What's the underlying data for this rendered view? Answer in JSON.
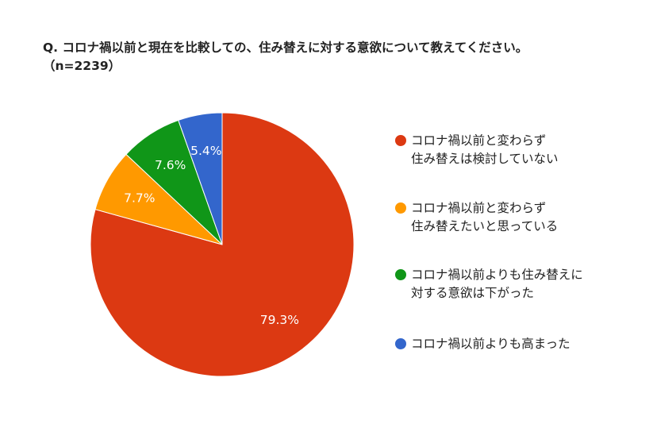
{
  "title": {
    "line1": "Q. コロナ禍以前と現在を比較しての、住み替えに対する意欲について教えてください。",
    "line2": "（n=2239）"
  },
  "chart_data": {
    "type": "pie",
    "start_angle_deg": 0,
    "direction": "clockwise",
    "slices": [
      {
        "label_lines": [
          "コロナ禍以前と変わらず",
          "住み替えは検討していない"
        ],
        "value": 79.3,
        "value_label": "79.3%",
        "color": "#DC3912"
      },
      {
        "label_lines": [
          "コロナ禍以前と変わらず",
          "住み替えたいと思っている"
        ],
        "value": 7.7,
        "value_label": "7.7%",
        "color": "#FF9900"
      },
      {
        "label_lines": [
          "コロナ禍以前よりも住み替えに",
          "対する意欲は下がった"
        ],
        "value": 7.6,
        "value_label": "7.6%",
        "color": "#109618"
      },
      {
        "label_lines": [
          "コロナ禍以前よりも高まった"
        ],
        "value": 5.4,
        "value_label": "5.4%",
        "color": "#3366CC"
      }
    ],
    "legend_position": "right"
  }
}
